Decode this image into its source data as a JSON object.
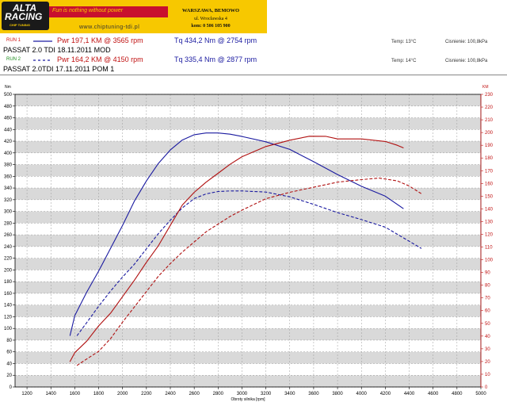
{
  "header": {
    "logo_line1": "ALTA",
    "logo_line2": "RACING",
    "logo_line3": "CHIP TUNING",
    "slogan": "Fun is nothing without power",
    "website": "www.chiptuning-tdi.pl",
    "address_city": "WARSZAWA, BEMOWO",
    "address_street": "ul. Wrocławska 4",
    "address_phone": "kom: 0 506 105 900"
  },
  "runs": [
    {
      "run_label": "RUN 1",
      "pwr_text": "Pwr 197,1 KM @ 3565 rpm",
      "tq_text": "Tq 434,2 Nm @ 2754 rpm",
      "car_text": "PASSAT  2.0 TDI  18.11.2011  MOD",
      "temp_text": "Temp: 13°C",
      "pressure_text": "Cisnienie: 100,8kPa",
      "color": "#1a1aa0",
      "label_color": "#d01010"
    },
    {
      "run_label": "RUN 2",
      "pwr_text": "Pwr 164,2 KM @ 4150 rpm",
      "tq_text": "Tq 335,4 Nm @ 2877 rpm",
      "car_text": "PASSAT  2.0TDI  17.11.2011   POM 1",
      "temp_text": "Temp: 14°C",
      "pressure_text": "Cisnienie: 100,8kPa",
      "color": "#1a1aa0",
      "label_color": "#1a8a1a"
    }
  ],
  "chart_data": {
    "type": "line",
    "title": "",
    "xlabel": "Obroty silnika [rpm]",
    "ylabel_left": "Nm",
    "ylabel_right": "KM",
    "xlim": [
      1100,
      5000
    ],
    "ylim_left": [
      0,
      500
    ],
    "ylim_right": [
      0,
      230
    ],
    "x_ticks": [
      1200,
      1400,
      1600,
      1800,
      2000,
      2200,
      2400,
      2600,
      2800,
      3000,
      3200,
      3400,
      3600,
      3800,
      4000,
      4200,
      4400,
      4600,
      4800,
      5000
    ],
    "y_left_ticks": [
      0,
      20,
      40,
      60,
      80,
      100,
      120,
      140,
      160,
      180,
      200,
      220,
      240,
      260,
      280,
      300,
      320,
      340,
      360,
      380,
      400,
      420,
      440,
      460,
      480,
      500
    ],
    "y_right_ticks": [
      0,
      10,
      20,
      30,
      40,
      50,
      60,
      70,
      80,
      90,
      100,
      110,
      120,
      130,
      140,
      150,
      160,
      170,
      180,
      190,
      200,
      210,
      220,
      230
    ],
    "grid": true,
    "band_colors": [
      "#d9d9d9",
      "#ffffff"
    ],
    "series": [
      {
        "name": "Tq RUN 1",
        "axis": "left",
        "color": "#1a1aa0",
        "dash": false,
        "x": [
          1560,
          1600,
          1700,
          1800,
          1900,
          2000,
          2100,
          2200,
          2300,
          2400,
          2500,
          2600,
          2700,
          2800,
          2900,
          3000,
          3200,
          3400,
          3600,
          3800,
          4000,
          4200,
          4350
        ],
        "y": [
          88,
          122,
          162,
          198,
          237,
          276,
          318,
          352,
          382,
          405,
          422,
          431,
          434,
          434,
          432,
          428,
          419,
          406,
          385,
          363,
          343,
          326,
          305
        ]
      },
      {
        "name": "Tq RUN 2",
        "axis": "left",
        "color": "#1a1aa0",
        "dash": true,
        "x": [
          1620,
          1700,
          1800,
          1900,
          2000,
          2100,
          2200,
          2300,
          2400,
          2500,
          2600,
          2700,
          2800,
          2900,
          3000,
          3200,
          3400,
          3600,
          3800,
          4000,
          4200,
          4350,
          4500
        ],
        "y": [
          88,
          110,
          138,
          164,
          188,
          210,
          236,
          262,
          285,
          306,
          322,
          330,
          334,
          335,
          335,
          333,
          325,
          312,
          298,
          286,
          273,
          255,
          237
        ]
      },
      {
        "name": "Pwr RUN 1",
        "axis": "right",
        "color": "#b01010",
        "dash": false,
        "x": [
          1560,
          1600,
          1700,
          1800,
          1900,
          2000,
          2100,
          2200,
          2300,
          2400,
          2500,
          2600,
          2700,
          2800,
          2900,
          3000,
          3200,
          3400,
          3565,
          3700,
          3800,
          3900,
          4000,
          4100,
          4200,
          4300,
          4350
        ],
        "y": [
          20,
          27,
          36,
          48,
          58,
          71,
          84,
          98,
          111,
          127,
          143,
          153,
          161,
          168,
          175,
          181,
          189,
          194,
          197.1,
          197,
          195,
          195,
          195,
          194,
          193,
          190,
          188
        ]
      },
      {
        "name": "Pwr RUN 2",
        "axis": "right",
        "color": "#b01010",
        "dash": true,
        "x": [
          1620,
          1700,
          1800,
          1900,
          2000,
          2100,
          2200,
          2300,
          2400,
          2500,
          2600,
          2700,
          2800,
          2900,
          3000,
          3200,
          3400,
          3600,
          3800,
          4000,
          4150,
          4300,
          4400,
          4500
        ],
        "y": [
          17,
          22,
          28,
          38,
          51,
          63,
          75,
          87,
          97,
          106,
          114,
          122,
          128,
          134,
          139,
          148,
          153,
          157,
          161,
          163,
          164.2,
          162,
          158,
          152
        ]
      }
    ]
  }
}
